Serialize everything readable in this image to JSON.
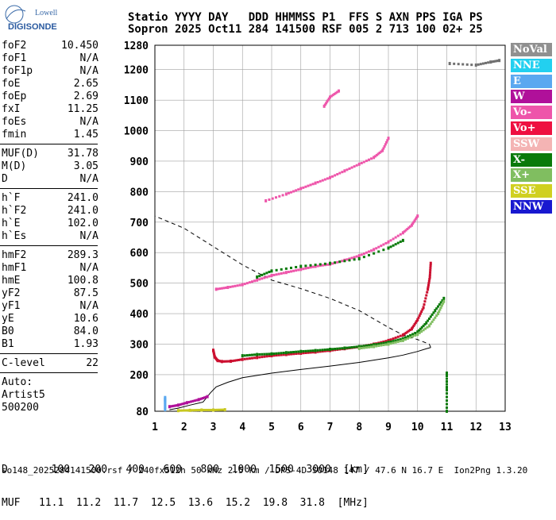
{
  "logo": {
    "line1": "Lowell",
    "line2": "DIGISONDE"
  },
  "header": {
    "line1": "Statio YYYY DAY   DDD HHMMSS P1  FFS S AXN PPS IGA PS",
    "line2": "Sopron 2025 Oct11 284 141500 RSF 005 2 713 100 02+ 25"
  },
  "params": {
    "group1": [
      {
        "k": "foF2",
        "v": "10.450"
      },
      {
        "k": "foF1",
        "v": "N/A"
      },
      {
        "k": "foF1p",
        "v": "N/A"
      },
      {
        "k": "foE",
        "v": "2.65"
      },
      {
        "k": "foEp",
        "v": "2.69"
      },
      {
        "k": "fxI",
        "v": "11.25"
      },
      {
        "k": "foEs",
        "v": "N/A"
      },
      {
        "k": "fmin",
        "v": "1.45"
      }
    ],
    "group2": [
      {
        "k": "MUF(D)",
        "v": "31.78"
      },
      {
        "k": "M(D)",
        "v": "3.05"
      },
      {
        "k": "D",
        "v": "N/A"
      }
    ],
    "group3": [
      {
        "k": "h`F",
        "v": "241.0"
      },
      {
        "k": "h`F2",
        "v": "241.0"
      },
      {
        "k": "h`E",
        "v": "102.0"
      },
      {
        "k": "h`Es",
        "v": "N/A"
      }
    ],
    "group4": [
      {
        "k": "hmF2",
        "v": "289.3"
      },
      {
        "k": "hmF1",
        "v": "N/A"
      },
      {
        "k": "hmE",
        "v": "100.8"
      },
      {
        "k": "yF2",
        "v": "87.5"
      },
      {
        "k": "yF1",
        "v": "N/A"
      },
      {
        "k": "yE",
        "v": "10.6"
      },
      {
        "k": "B0",
        "v": "84.0"
      },
      {
        "k": "B1",
        "v": "1.93"
      }
    ],
    "group5": [
      {
        "k": "C-level",
        "v": "22"
      }
    ],
    "auto_label": "Auto:",
    "artist": "Artist5",
    "code": "500200"
  },
  "legend": [
    {
      "label": "NoVal",
      "color": "#909090"
    },
    {
      "label": "NNE",
      "color": "#22d0f0"
    },
    {
      "label": "E",
      "color": "#5aa8f0"
    },
    {
      "label": "W",
      "color": "#b0109a"
    },
    {
      "label": "Vo-",
      "color": "#ee55aa"
    },
    {
      "label": "Vo+",
      "color": "#ee1040"
    },
    {
      "label": "SSW",
      "color": "#f4b4b4"
    },
    {
      "label": "X-",
      "color": "#0a7a0a"
    },
    {
      "label": "X+",
      "color": "#80be60"
    },
    {
      "label": "SSE",
      "color": "#d0d020"
    },
    {
      "label": "NNW",
      "color": "#1818d0"
    }
  ],
  "bottom": {
    "d_row": "D       100   200   400   600   800  1000  1500  3000  [km]",
    "muf_row": "MUF   11.1  11.2  11.7  12.5  13.6  15.2  19.8  31.8  [MHz]"
  },
  "footer": "so148_2025284141500.rsf / 240fx512h 50 kHz 2.5 km / DPS-4D SO148 147 / 47.6 N 16.7 E  Ion2Png 1.3.20",
  "chart_data": {
    "type": "scatter",
    "xlim": [
      1,
      13
    ],
    "ylim": [
      80,
      1280
    ],
    "x_ticks": [
      1,
      2,
      3,
      4,
      5,
      6,
      7,
      8,
      9,
      10,
      11,
      12,
      13
    ],
    "y_ticks": [
      80,
      200,
      300,
      400,
      500,
      600,
      700,
      800,
      900,
      1000,
      1100,
      1200,
      1280
    ],
    "grid": true,
    "series": [
      {
        "name": "Vo+",
        "color": "#cc1030",
        "points": [
          [
            3.0,
            280
          ],
          [
            3.05,
            258
          ],
          [
            3.15,
            246
          ],
          [
            3.3,
            243
          ],
          [
            3.6,
            244
          ],
          [
            4.0,
            250
          ],
          [
            4.5,
            256
          ],
          [
            5.0,
            262
          ],
          [
            5.5,
            266
          ],
          [
            6.0,
            270
          ],
          [
            6.5,
            274
          ],
          [
            7.0,
            279
          ],
          [
            7.5,
            285
          ],
          [
            8.0,
            291
          ],
          [
            8.5,
            300
          ],
          [
            9.0,
            312
          ],
          [
            9.5,
            330
          ],
          [
            9.8,
            350
          ],
          [
            10.0,
            380
          ],
          [
            10.2,
            420
          ],
          [
            10.35,
            480
          ],
          [
            10.42,
            520
          ],
          [
            10.45,
            565
          ]
        ]
      },
      {
        "name": "X-",
        "color": "#0a7a0a",
        "points": [
          [
            4.0,
            262
          ],
          [
            4.5,
            266
          ],
          [
            5.0,
            268
          ],
          [
            5.5,
            272
          ],
          [
            6.0,
            276
          ],
          [
            6.5,
            279
          ],
          [
            7.0,
            283
          ],
          [
            7.5,
            287
          ],
          [
            8.0,
            292
          ],
          [
            8.5,
            298
          ],
          [
            9.0,
            306
          ],
          [
            9.5,
            318
          ],
          [
            10.0,
            340
          ],
          [
            10.3,
            370
          ],
          [
            10.6,
            410
          ],
          [
            10.9,
            450
          ]
        ]
      },
      {
        "name": "X+",
        "color": "#80be60",
        "points": [
          [
            8.0,
            286
          ],
          [
            8.5,
            292
          ],
          [
            9.0,
            300
          ],
          [
            9.5,
            312
          ],
          [
            10.0,
            332
          ],
          [
            10.4,
            360
          ],
          [
            10.7,
            400
          ],
          [
            10.9,
            440
          ]
        ]
      },
      {
        "name": "Vo-",
        "color": "#ee55aa",
        "points": [
          [
            3.1,
            480
          ],
          [
            3.5,
            486
          ],
          [
            4.0,
            495
          ],
          [
            4.5,
            510
          ],
          [
            5.0,
            525
          ],
          [
            5.5,
            535
          ],
          [
            6.0,
            545
          ],
          [
            6.5,
            555
          ],
          [
            7.0,
            562
          ],
          [
            7.5,
            575
          ],
          [
            8.0,
            590
          ],
          [
            8.5,
            610
          ],
          [
            9.0,
            635
          ],
          [
            9.5,
            665
          ],
          [
            9.8,
            690
          ],
          [
            10.0,
            720
          ]
        ]
      },
      {
        "name": "X-",
        "color": "#0a7a0a",
        "points": [
          [
            4.5,
            520
          ],
          [
            5.0,
            540
          ],
          [
            6.0,
            555
          ],
          [
            7.0,
            565
          ],
          [
            8.0,
            580
          ],
          [
            9.0,
            615
          ],
          [
            9.5,
            640
          ]
        ]
      },
      {
        "name": "Vo-",
        "color": "#ee55aa",
        "points": [
          [
            4.8,
            770
          ],
          [
            5.5,
            792
          ],
          [
            6.0,
            810
          ],
          [
            6.5,
            828
          ],
          [
            7.0,
            846
          ],
          [
            7.5,
            868
          ],
          [
            8.0,
            890
          ],
          [
            8.5,
            912
          ],
          [
            8.8,
            935
          ],
          [
            9.0,
            975
          ]
        ]
      },
      {
        "name": "Vo-",
        "color": "#ee55aa",
        "points": [
          [
            6.8,
            1080
          ],
          [
            7.0,
            1110
          ],
          [
            7.3,
            1130
          ]
        ]
      },
      {
        "name": "NoVal",
        "color": "#707070",
        "points": [
          [
            11.1,
            1220
          ],
          [
            12.0,
            1215
          ],
          [
            12.5,
            1225
          ],
          [
            12.8,
            1230
          ]
        ]
      },
      {
        "name": "E",
        "color": "#5aa8f0",
        "points": [
          [
            1.35,
            85
          ],
          [
            1.35,
            110
          ],
          [
            1.35,
            125
          ]
        ]
      },
      {
        "name": "X-",
        "color": "#0a7a0a",
        "points": [
          [
            11.0,
            80
          ],
          [
            11.0,
            150
          ],
          [
            11.0,
            205
          ]
        ]
      },
      {
        "name": "SSE",
        "color": "#c8c820",
        "points": [
          [
            1.8,
            82
          ],
          [
            2.2,
            83
          ],
          [
            2.6,
            84
          ],
          [
            3.0,
            84
          ],
          [
            3.4,
            85
          ]
        ]
      },
      {
        "name": "W",
        "color": "#b0109a",
        "points": [
          [
            1.5,
            95
          ],
          [
            1.8,
            100
          ],
          [
            2.1,
            108
          ],
          [
            2.5,
            118
          ],
          [
            2.8,
            128
          ]
        ]
      }
    ],
    "profile_curve": [
      [
        1.5,
        85
      ],
      [
        1.8,
        90
      ],
      [
        2.2,
        100
      ],
      [
        2.65,
        110
      ],
      [
        2.9,
        140
      ],
      [
        3.1,
        160
      ],
      [
        3.5,
        175
      ],
      [
        4.0,
        190
      ],
      [
        5.0,
        205
      ],
      [
        6.0,
        217
      ],
      [
        7.0,
        228
      ],
      [
        8.0,
        240
      ],
      [
        9.0,
        255
      ],
      [
        9.5,
        264
      ],
      [
        10.0,
        276
      ],
      [
        10.3,
        285
      ],
      [
        10.45,
        289
      ],
      [
        10.4,
        300
      ],
      [
        10.0,
        315
      ],
      [
        9.5,
        330
      ],
      [
        9.0,
        355
      ],
      [
        8.0,
        410
      ],
      [
        7.0,
        450
      ],
      [
        6.0,
        482
      ],
      [
        5.0,
        510
      ],
      [
        4.0,
        560
      ],
      [
        3.0,
        620
      ],
      [
        2.0,
        680
      ],
      [
        1.0,
        720
      ]
    ]
  }
}
